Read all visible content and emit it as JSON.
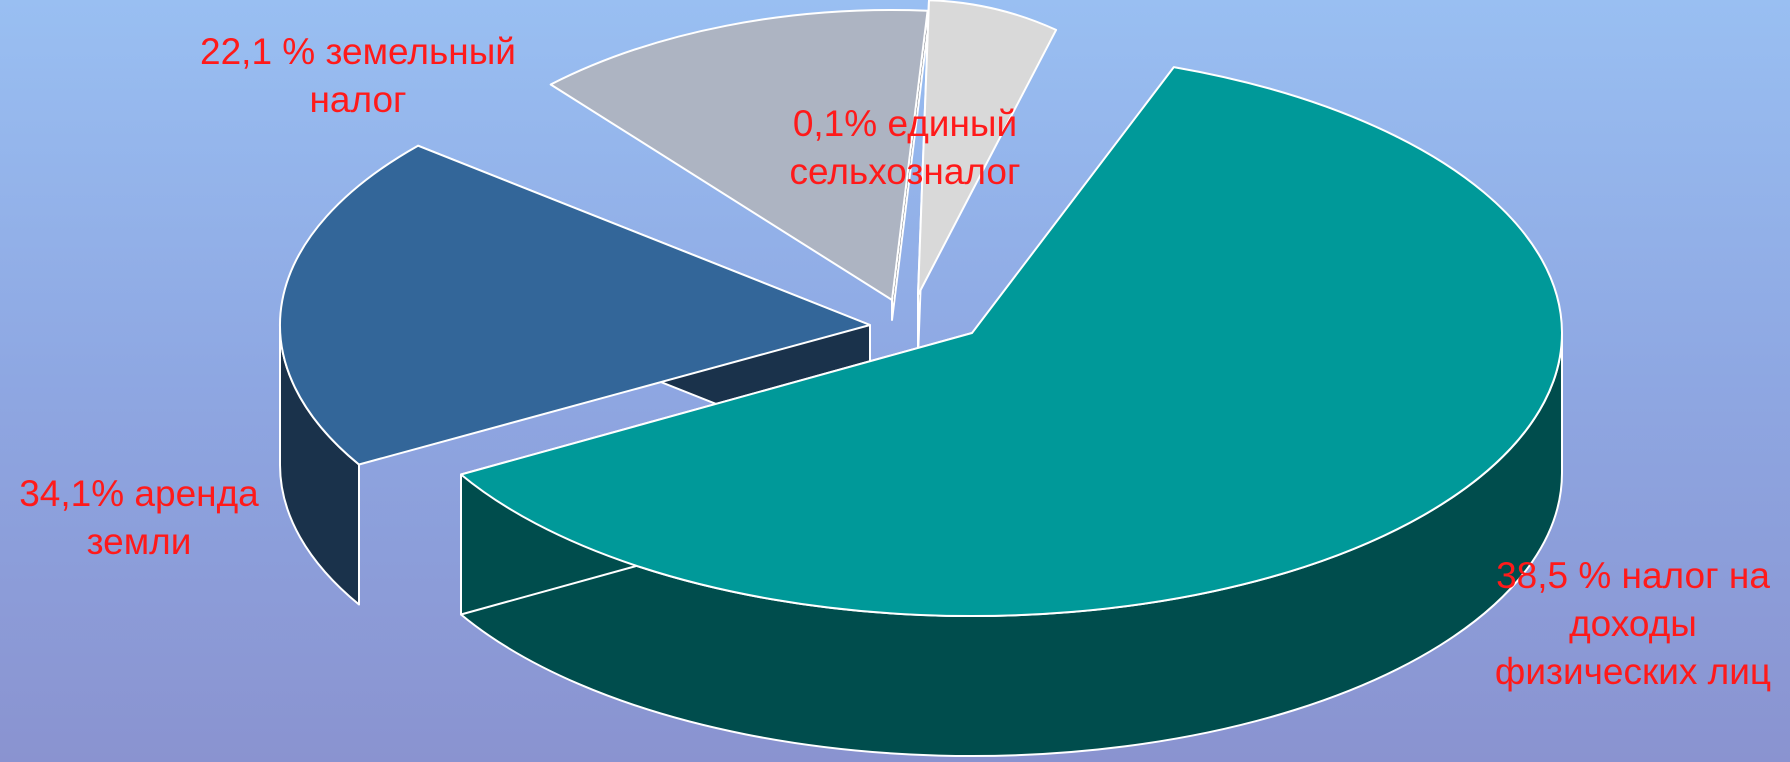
{
  "chart_data": {
    "type": "pie",
    "style": "3d-exploded",
    "slices": [
      {
        "key": "ndfl",
        "label_lines": [
          "38,5 % налог на",
          "доходы",
          "физических лиц"
        ],
        "value": 38.5,
        "color": "#009999",
        "side_color": "#004d4d"
      },
      {
        "key": "selhoz",
        "label_lines": [
          "0,1% единый",
          "сельхозналог"
        ],
        "value": 0.1,
        "color": "#d9d9d9",
        "side_color": "#6e6e6e"
      },
      {
        "key": "zemelny",
        "label_lines": [
          "22,1 % земельный",
          "налог"
        ],
        "value": 22.1,
        "color": "#adb4c2",
        "side_color": "#555a63"
      },
      {
        "key": "arenda",
        "label_lines": [
          "34,1% аренда",
          "земли"
        ],
        "value": 34.1,
        "color": "#336699",
        "side_color": "#1a324b"
      }
    ]
  }
}
